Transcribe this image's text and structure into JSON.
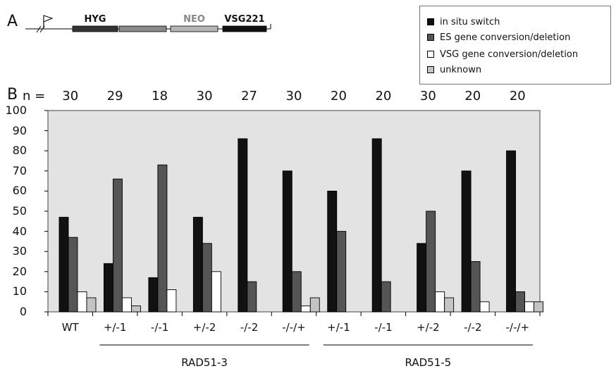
{
  "panel_a": {
    "letter": "A",
    "cassette": [
      {
        "name": "HYG",
        "color": "#333333",
        "label_color": "#111111"
      },
      {
        "name": "",
        "color": "#8a8a8a",
        "label_color": "#111111"
      },
      {
        "name": "NEO",
        "color": "#b5b5b5",
        "label_color": "#888888"
      },
      {
        "name": "VSG221",
        "color": "#111111",
        "label_color": "#111111"
      }
    ]
  },
  "panel_b": {
    "letter": "B",
    "n_prefix": "n ="
  },
  "legend": [
    {
      "label": "in situ switch",
      "color": "#111111"
    },
    {
      "label": "ES gene conversion/deletion",
      "color": "#555555"
    },
    {
      "label": "VSG gene conversion/deletion",
      "color": "#ffffff"
    },
    {
      "label": "unknown",
      "color": "#c4c4c4"
    }
  ],
  "chart_data": {
    "type": "bar",
    "categories": [
      "WT",
      "+/-1",
      "-/-1",
      "+/-2",
      "-/-2",
      "-/-/+",
      "+/-1",
      "-/-1",
      "+/-2",
      "-/-2",
      "-/-/+"
    ],
    "n": [
      "30",
      "29",
      "18",
      "30",
      "27",
      "30",
      "20",
      "20",
      "30",
      "20",
      "20"
    ],
    "groups": [
      {
        "label": "RAD51-3",
        "from": 1,
        "to": 5
      },
      {
        "label": "RAD51-5",
        "from": 6,
        "to": 10
      }
    ],
    "series": [
      {
        "name": "in situ switch",
        "color": "#111111",
        "values": [
          47,
          24,
          17,
          47,
          86,
          70,
          60,
          86,
          34,
          70,
          80
        ]
      },
      {
        "name": "ES gene conversion/deletion",
        "color": "#555555",
        "values": [
          37,
          66,
          73,
          34,
          15,
          20,
          40,
          15,
          50,
          25,
          10
        ]
      },
      {
        "name": "VSG gene conversion/deletion",
        "color": "#ffffff",
        "values": [
          10,
          7,
          11,
          20,
          0,
          3,
          0,
          0,
          10,
          5,
          5
        ]
      },
      {
        "name": "unknown",
        "color": "#c4c4c4",
        "values": [
          7,
          3,
          0,
          0,
          0,
          7,
          0,
          0,
          7,
          0,
          5
        ]
      }
    ],
    "ylim": [
      0,
      100
    ],
    "yticks": [
      "0",
      "10",
      "20",
      "30",
      "40",
      "50",
      "60",
      "70",
      "80",
      "90",
      "100"
    ],
    "plot_background": "#e3e3e3",
    "grid": false
  }
}
